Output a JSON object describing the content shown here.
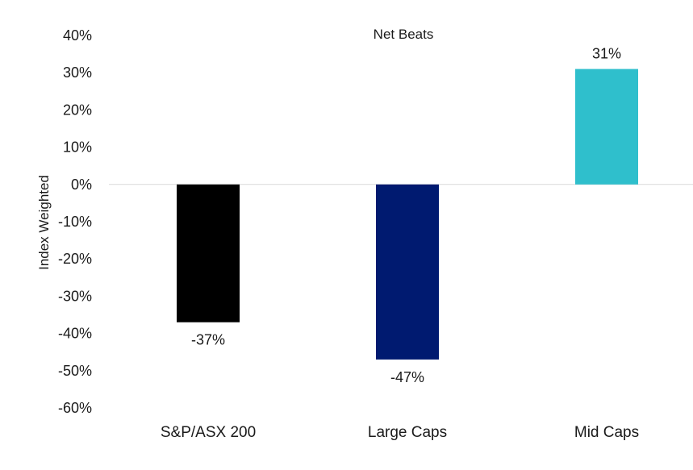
{
  "chart_data": {
    "type": "bar",
    "title": "Net Beats",
    "xlabel": "",
    "ylabel": "Index Weighted",
    "categories": [
      "S&P/ASX 200",
      "Large Caps",
      "Mid Caps"
    ],
    "values": [
      -37,
      -47,
      31
    ],
    "data_labels": [
      "-37%",
      "-47%",
      "31%"
    ],
    "colors": [
      "#000000",
      "#001a70",
      "#2fbfcc"
    ],
    "ylim": [
      -60,
      40
    ],
    "yticks": [
      40,
      30,
      20,
      10,
      0,
      -10,
      -20,
      -30,
      -40,
      -50,
      -60
    ],
    "ytick_labels": [
      "40%",
      "30%",
      "20%",
      "10%",
      "0%",
      "-10%",
      "-20%",
      "-30%",
      "-40%",
      "-50%",
      "-60%"
    ],
    "grid": false,
    "legend": "none",
    "zero_line_color": "#d9d9d9"
  }
}
